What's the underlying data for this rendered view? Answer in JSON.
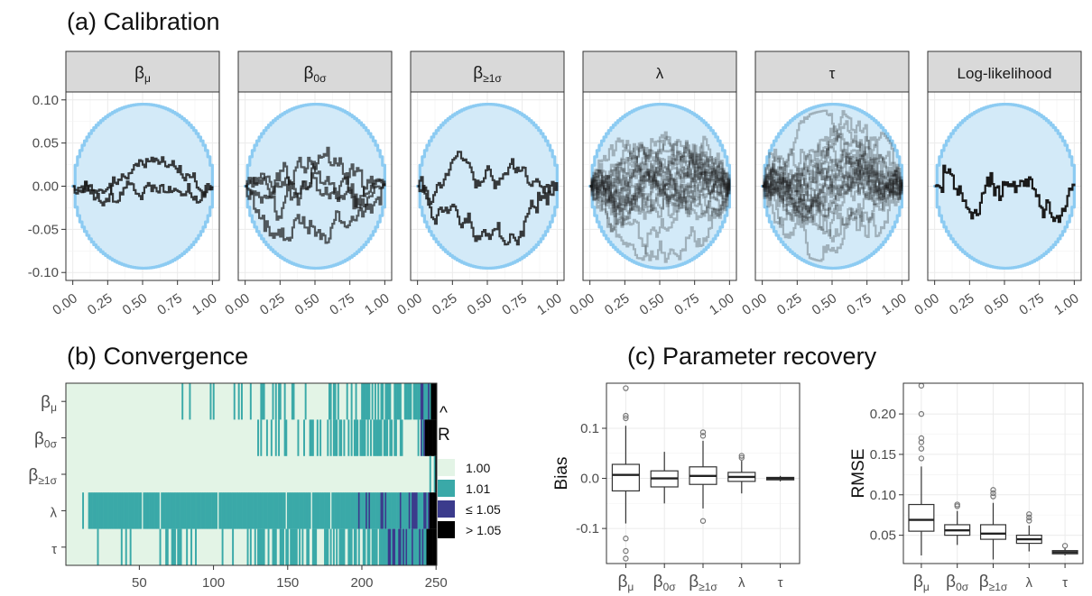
{
  "panel_a": {
    "title": "(a) Calibration",
    "facets": [
      "βμ",
      "β0σ",
      "β≥1σ",
      "λ",
      "τ",
      "Log-likelihood"
    ],
    "y_ticks": [
      "0.10",
      "0.05",
      "0.00",
      "-0.05",
      "-0.10"
    ],
    "x_ticks": [
      "0.00",
      "0.25",
      "0.50",
      "0.75",
      "1.00"
    ]
  },
  "panel_b": {
    "title": "(b) Convergence",
    "rows": [
      "βμ",
      "β0σ",
      "β≥1σ",
      "λ",
      "τ"
    ],
    "x_ticks": [
      "50",
      "100",
      "150",
      "200",
      "250"
    ],
    "legend_title": "R̂",
    "legend_labels": [
      "1.00",
      "1.01",
      "≤ 1.05",
      "> 1.05"
    ]
  },
  "panel_c": {
    "title": "(c) Parameter recovery",
    "bias_label": "Bias",
    "rmse_label": "RMSE",
    "bias_ticks": [
      "0.1",
      "0.0",
      "-0.1"
    ],
    "rmse_ticks": [
      "0.20",
      "0.15",
      "0.10",
      "0.05"
    ],
    "x_categories": [
      "βμ",
      "β0σ",
      "β≥1σ",
      "λ",
      "τ"
    ]
  },
  "chart_data": [
    {
      "type": "line",
      "title": "(a) Calibration",
      "facets": [
        "βμ",
        "β0σ",
        "β≥1σ",
        "λ",
        "τ",
        "Log-likelihood"
      ],
      "xlim": [
        0,
        1
      ],
      "ylim": [
        -0.1,
        0.1
      ],
      "x_ticks": [
        0,
        0.25,
        0.5,
        0.75,
        1.0
      ],
      "y_ticks": [
        -0.1,
        -0.05,
        0.0,
        0.05,
        0.1
      ],
      "band": "circular 95% envelope centred at (0.5, 0), radius 0.5 in x and 0.095 in y",
      "traces_per_facet": [
        2,
        4,
        2,
        20,
        20,
        1
      ],
      "colors": {
        "band_fill": "#d3eaf8",
        "band_edge": "#8ccbf2",
        "trace": "#1a1a1a"
      }
    },
    {
      "type": "heatmap",
      "title": "(b) Convergence",
      "rows": [
        "βμ",
        "β0σ",
        "β≥1σ",
        "λ",
        "τ"
      ],
      "xlim": [
        1,
        250
      ],
      "x_ticks": [
        50,
        100,
        150,
        200,
        250
      ],
      "legend_title": "R̂",
      "legend": [
        {
          "label": "1.00",
          "color": "#e3f4e6"
        },
        {
          "label": "1.01",
          "color": "#3aa9a8"
        },
        {
          "label": "≤ 1.05",
          "color": "#3b3b8c"
        },
        {
          "label": "> 1.05",
          "color": "#000000"
        }
      ],
      "regions": [
        {
          "row": "βμ",
          "sparse_1.01_from": 62,
          "dense_1.01_from": 173,
          "1.05_from": 236,
          "gt_1.05_from": 247
        },
        {
          "row": "β0σ",
          "sparse_1.01_from": 130,
          "dense_1.01_from": 168,
          "1.05_from": 240,
          "gt_1.05_from": 243
        },
        {
          "row": "β≥1σ",
          "sparse_1.01_from": 245,
          "dense_1.01_from": 248,
          "1.05_from": 250,
          "gt_1.05_from": 250
        },
        {
          "row": "λ",
          "sparse_1.01_from": 12,
          "dense_1.01_from": 16,
          "1.05_from": 190,
          "gt_1.05_from": 246
        },
        {
          "row": "τ",
          "sparse_1.01_from": 14,
          "dense_1.01_from": 130,
          "1.05_from": 215,
          "gt_1.05_from": 244
        }
      ]
    },
    {
      "type": "box",
      "title": "(c) Parameter recovery",
      "ylabel": "Bias",
      "categories": [
        "βμ",
        "β0σ",
        "β≥1σ",
        "λ",
        "τ"
      ],
      "ylim": [
        -0.17,
        0.19
      ],
      "y_ticks": [
        -0.1,
        0.0,
        0.1
      ],
      "boxes": [
        {
          "whisker_low": -0.09,
          "q1": -0.025,
          "median": 0.007,
          "q3": 0.028,
          "whisker_high": 0.105,
          "outliers": [
            0.18,
            0.125,
            0.12,
            -0.12,
            -0.145,
            -0.16
          ]
        },
        {
          "whisker_low": -0.05,
          "q1": -0.017,
          "median": 0.0,
          "q3": 0.015,
          "whisker_high": 0.053,
          "outliers": []
        },
        {
          "whisker_low": -0.06,
          "q1": -0.012,
          "median": 0.005,
          "q3": 0.023,
          "whisker_high": 0.075,
          "outliers": [
            0.092,
            0.085,
            -0.085
          ]
        },
        {
          "whisker_low": -0.03,
          "q1": -0.006,
          "median": 0.003,
          "q3": 0.012,
          "whisker_high": 0.035,
          "outliers": [
            0.045,
            0.041
          ]
        },
        {
          "whisker_low": -0.006,
          "q1": -0.003,
          "median": 0.0,
          "q3": 0.002,
          "whisker_high": 0.005,
          "outliers": []
        }
      ]
    },
    {
      "type": "box",
      "ylabel": "RMSE",
      "categories": [
        "βμ",
        "β0σ",
        "β≥1σ",
        "λ",
        "τ"
      ],
      "ylim": [
        0.015,
        0.238
      ],
      "y_ticks": [
        0.05,
        0.1,
        0.15,
        0.2
      ],
      "boxes": [
        {
          "whisker_low": 0.025,
          "q1": 0.055,
          "median": 0.069,
          "q3": 0.088,
          "whisker_high": 0.135,
          "outliers": [
            0.235,
            0.2,
            0.17,
            0.165,
            0.157,
            0.145
          ]
        },
        {
          "whisker_low": 0.038,
          "q1": 0.05,
          "median": 0.056,
          "q3": 0.063,
          "whisker_high": 0.08,
          "outliers": [
            0.088,
            0.086
          ]
        },
        {
          "whisker_low": 0.02,
          "q1": 0.045,
          "median": 0.052,
          "q3": 0.063,
          "whisker_high": 0.09,
          "outliers": [
            0.106,
            0.102,
            0.098
          ]
        },
        {
          "whisker_low": 0.03,
          "q1": 0.04,
          "median": 0.045,
          "q3": 0.05,
          "whisker_high": 0.062,
          "outliers": [
            0.076,
            0.072,
            0.068
          ]
        },
        {
          "whisker_low": 0.025,
          "q1": 0.027,
          "median": 0.029,
          "q3": 0.031,
          "whisker_high": 0.034,
          "outliers": [
            0.037
          ]
        }
      ]
    }
  ]
}
